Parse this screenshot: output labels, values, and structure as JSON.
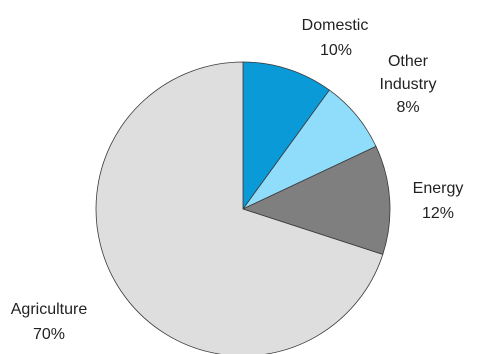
{
  "chart_data": {
    "type": "pie",
    "start_angle_deg": 0,
    "direction": "clockwise",
    "slices": [
      {
        "label": "Domestic",
        "value": 10,
        "value_text": "10%",
        "color": "#0a9ad8"
      },
      {
        "label": "Other Industry",
        "value": 8,
        "value_text": "8%",
        "color": "#8fdcfb"
      },
      {
        "label": "Energy",
        "value": 12,
        "value_text": "12%",
        "color": "#7f7f7f"
      },
      {
        "label": "Agriculture",
        "value": 70,
        "value_text": "70%",
        "color": "#dedede"
      }
    ]
  }
}
